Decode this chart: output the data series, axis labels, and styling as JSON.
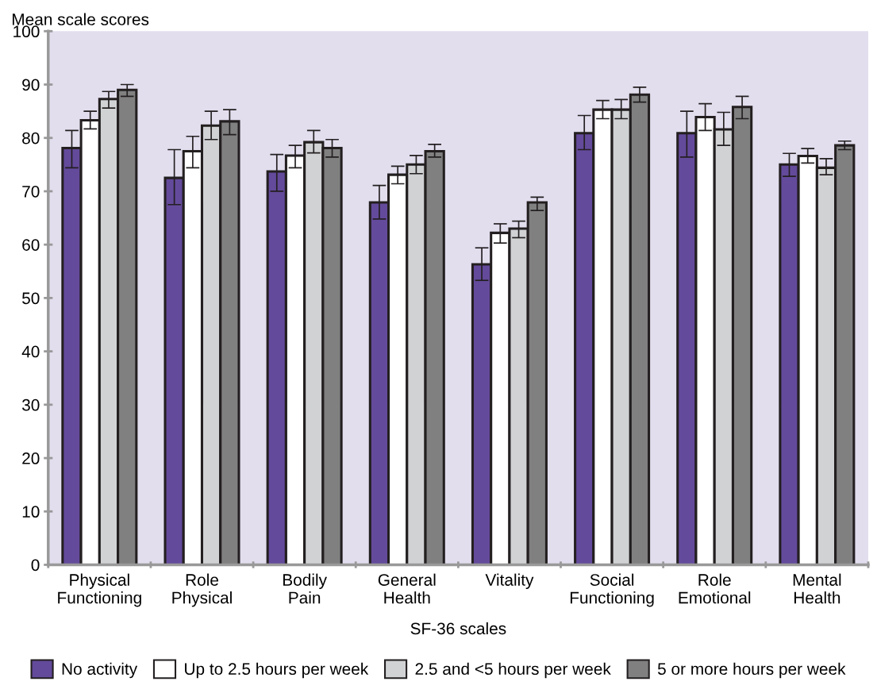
{
  "chart_data": {
    "type": "bar",
    "ylabel": "Mean scale scores",
    "xlabel": "SF-36 scales",
    "categories": [
      "Physical\nFunctioning",
      "Role\nPhysical",
      "Bodily\nPain",
      "General\nHealth",
      "Vitality",
      "Social\nFunctioning",
      "Role\nEmotional",
      "Mental\nHealth"
    ],
    "series": [
      {
        "name": "No activity",
        "color": "#644a9b",
        "values": [
          78.1,
          72.5,
          73.7,
          67.9,
          56.3,
          80.9,
          80.9,
          75.0
        ],
        "errors": [
          [
            74.4,
            81.4
          ],
          [
            67.5,
            77.8
          ],
          [
            70.0,
            76.9
          ],
          [
            64.8,
            71.1
          ],
          [
            53.3,
            59.4
          ],
          [
            77.8,
            84.2
          ],
          [
            76.4,
            85.0
          ],
          [
            72.8,
            77.1
          ]
        ]
      },
      {
        "name": "Up to 2.5 hours per week",
        "color": "#ffffff",
        "values": [
          83.3,
          77.5,
          76.7,
          73.1,
          62.2,
          85.3,
          83.9,
          76.6
        ],
        "errors": [
          [
            81.7,
            85.0
          ],
          [
            74.4,
            80.3
          ],
          [
            74.4,
            78.6
          ],
          [
            71.4,
            74.7
          ],
          [
            60.3,
            63.9
          ],
          [
            83.6,
            87.0
          ],
          [
            81.4,
            86.4
          ],
          [
            75.3,
            78.0
          ]
        ]
      },
      {
        "name": "2.5 and <5 hours per week",
        "color": "#d1d2d4",
        "values": [
          87.3,
          82.3,
          79.2,
          75.0,
          63.0,
          85.3,
          81.6,
          74.4
        ],
        "errors": [
          [
            85.6,
            88.7
          ],
          [
            79.7,
            85.0
          ],
          [
            77.2,
            81.4
          ],
          [
            73.3,
            76.7
          ],
          [
            61.3,
            64.4
          ],
          [
            83.6,
            87.2
          ],
          [
            78.6,
            84.8
          ],
          [
            73.1,
            76.1
          ]
        ]
      },
      {
        "name": "5 or more hours per week",
        "color": "#808080",
        "values": [
          89.0,
          83.1,
          78.1,
          77.5,
          67.9,
          88.1,
          85.8,
          78.6
        ],
        "errors": [
          [
            87.8,
            90.0
          ],
          [
            80.6,
            85.3
          ],
          [
            76.4,
            79.7
          ],
          [
            76.4,
            78.8
          ],
          [
            66.4,
            68.9
          ],
          [
            86.7,
            89.5
          ],
          [
            83.6,
            87.8
          ],
          [
            77.8,
            79.4
          ]
        ]
      }
    ],
    "ylim": [
      0,
      100
    ],
    "yticks": [
      0,
      10,
      20,
      30,
      40,
      50,
      60,
      70,
      80,
      90,
      100
    ],
    "grid": false,
    "legend": "bottom"
  }
}
